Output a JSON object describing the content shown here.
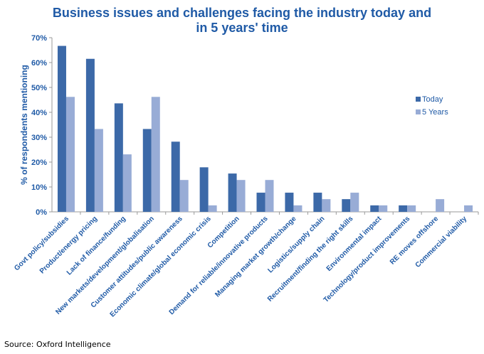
{
  "chart_data": {
    "type": "bar",
    "title_lines": [
      "Business issues and challenges facing the industry today and",
      "in 5 years' time"
    ],
    "ylabel": "% of respondents mentioning",
    "xlabel": "",
    "ylim": [
      0,
      70
    ],
    "yticks": [
      "0%",
      "10%",
      "20%",
      "30%",
      "40%",
      "50%",
      "60%",
      "70%"
    ],
    "categories": [
      "Govt policy/subsidies",
      "Product/energy pricing",
      "Lack of finance/funding",
      "New markets/development/globalisation",
      "Customer attitudes/public awareness",
      "Economic climate/global economic crisis",
      "Competition",
      "Demand for reliable/innovative products",
      "Managing market growth/change",
      "Logistics/supply chain",
      "Recruitment/finding the right skills",
      "Environmental impact",
      "Technology/product improvements",
      "RE moves offshore",
      "Commercial viability"
    ],
    "series": [
      {
        "name": "Today",
        "color": "#3c69a8",
        "values": [
          66.7,
          61.5,
          43.6,
          33.3,
          28.2,
          17.9,
          15.4,
          7.7,
          7.7,
          7.7,
          5.1,
          2.6,
          2.6,
          0,
          0
        ]
      },
      {
        "name": "5 Years",
        "color": "#98acd6",
        "values": [
          46.2,
          33.3,
          23.1,
          46.2,
          12.8,
          2.6,
          12.8,
          12.8,
          2.6,
          5.1,
          7.7,
          2.6,
          2.6,
          5.1,
          2.6
        ]
      }
    ],
    "grid": false,
    "legend": "right"
  },
  "source": "Source: Oxford Intelligence"
}
